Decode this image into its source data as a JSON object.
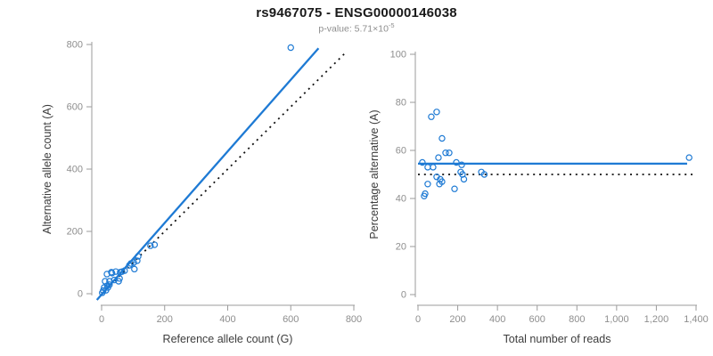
{
  "header": {
    "title": "rs9467075 - ENSG00000146038",
    "subtitle_prefix": "p-value: 5.71×10",
    "subtitle_exponent": "-5"
  },
  "colors": {
    "accent_blue": "#1e7ad4",
    "identity_line": "#111111",
    "axis_line": "#9b9b9b",
    "tick_label": "#8e8e8e",
    "axis_title": "#3d3d3d"
  },
  "chart_data": [
    {
      "type": "scatter",
      "name": "allele-counts",
      "xlabel": "Reference allele count (G)",
      "ylabel": "Alternative allele count (A)",
      "xlim": [
        0,
        800
      ],
      "ylim": [
        0,
        800
      ],
      "x_ticks": [
        0,
        200,
        400,
        600,
        800
      ],
      "x_tick_labels": [
        "0",
        "200",
        "400",
        "600",
        "800"
      ],
      "y_ticks": [
        0,
        200,
        400,
        600,
        800
      ],
      "y_tick_labels": [
        "0",
        "200",
        "400",
        "600",
        "800"
      ],
      "grid": false,
      "legend": "none",
      "points": [
        [
          2,
          3
        ],
        [
          5,
          10
        ],
        [
          8,
          20
        ],
        [
          11,
          40
        ],
        [
          14,
          11
        ],
        [
          18,
          26
        ],
        [
          17,
          63
        ],
        [
          20,
          20
        ],
        [
          25,
          29
        ],
        [
          25,
          40
        ],
        [
          31,
          69
        ],
        [
          33,
          66
        ],
        [
          40,
          44
        ],
        [
          45,
          71
        ],
        [
          54,
          40
        ],
        [
          57,
          49
        ],
        [
          59,
          69
        ],
        [
          65,
          71
        ],
        [
          73,
          74
        ],
        [
          88,
          91
        ],
        [
          93,
          97
        ],
        [
          102,
          100
        ],
        [
          104,
          79
        ],
        [
          113,
          106
        ],
        [
          116,
          120
        ],
        [
          155,
          154
        ],
        [
          168,
          157
        ],
        [
          600,
          790
        ]
      ],
      "lines": [
        {
          "name": "identity-line",
          "style": "dotted",
          "x1": 0,
          "y1": 0,
          "x2": 778,
          "y2": 778
        },
        {
          "name": "regression-line",
          "style": "solid",
          "x1": -15,
          "y1": -20,
          "x2": 688,
          "y2": 788
        }
      ]
    },
    {
      "type": "scatter",
      "name": "percentage-vs-reads",
      "xlabel": "Total number of reads",
      "ylabel": "Percentage alternative (A)",
      "xlim": [
        0,
        1400
      ],
      "ylim": [
        0,
        100
      ],
      "x_ticks": [
        0,
        200,
        400,
        600,
        800,
        1000,
        1200,
        1400
      ],
      "x_tick_labels": [
        "0",
        "200",
        "400",
        "600",
        "800",
        "1,000",
        "1,200",
        "1,400"
      ],
      "y_ticks": [
        0,
        20,
        40,
        60,
        80,
        100
      ],
      "y_tick_labels": [
        "0",
        "20",
        "40",
        "60",
        "80",
        "100"
      ],
      "grid": false,
      "legend": "none",
      "points": [
        [
          22,
          55
        ],
        [
          31,
          41
        ],
        [
          36,
          42
        ],
        [
          49,
          53
        ],
        [
          49,
          46
        ],
        [
          67,
          74
        ],
        [
          76,
          53
        ],
        [
          94,
          76
        ],
        [
          94,
          49
        ],
        [
          103,
          57
        ],
        [
          108,
          46
        ],
        [
          112,
          48
        ],
        [
          121,
          65
        ],
        [
          121,
          47
        ],
        [
          139,
          59
        ],
        [
          157,
          59
        ],
        [
          184,
          44
        ],
        [
          193,
          55
        ],
        [
          215,
          51
        ],
        [
          220,
          54
        ],
        [
          224,
          50
        ],
        [
          231,
          48
        ],
        [
          319,
          51
        ],
        [
          334,
          50
        ],
        [
          1365,
          57
        ]
      ],
      "lines": [
        {
          "name": "expected-line",
          "style": "dotted",
          "x1": 0,
          "y1": 50,
          "x2": 1385,
          "y2": 50
        },
        {
          "name": "mean-line",
          "style": "solid",
          "x1": 0,
          "y1": 54.5,
          "x2": 1355,
          "y2": 54.5
        }
      ]
    }
  ]
}
